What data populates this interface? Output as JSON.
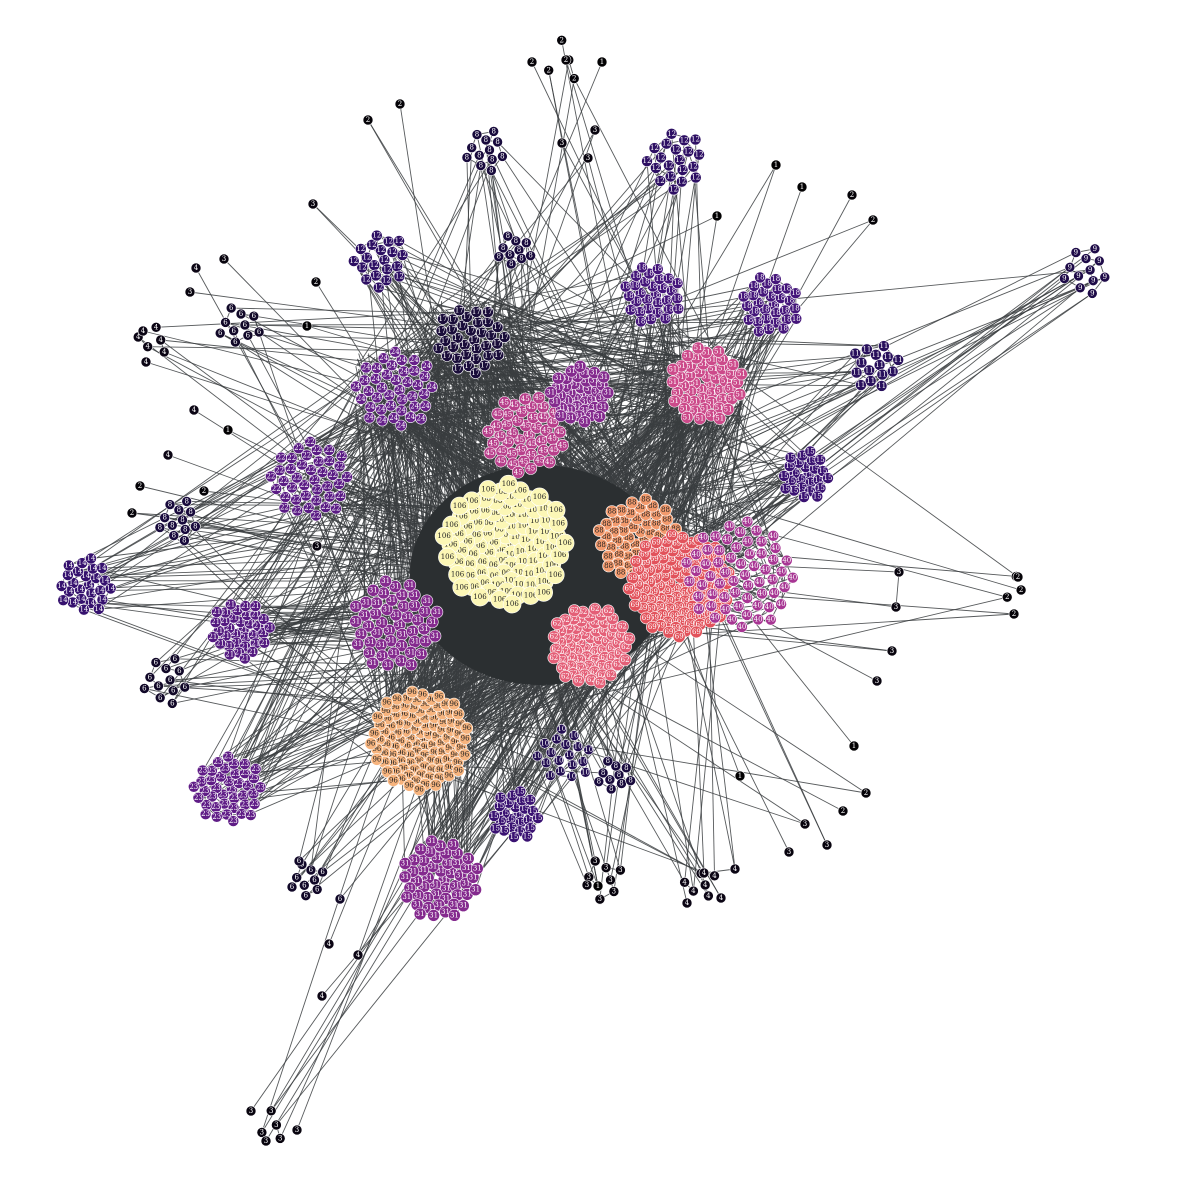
{
  "colors": {
    "background": "#ffffff",
    "edge": "#3a3d3f",
    "core_fill": "#2b2f31"
  },
  "legend_scale": {
    "label_light_threshold": 35
  },
  "clusters": [
    {
      "label": "106",
      "color": "#fcf7b6",
      "text": "#222222",
      "size": "large"
    },
    {
      "label": "96",
      "color": "#f7b47e",
      "text": "#222222",
      "size": "large"
    },
    {
      "label": "88",
      "color": "#f39a6d",
      "text": "#222222",
      "size": "medium"
    },
    {
      "label": "69",
      "color": "#e2525b",
      "text": "#ffffff",
      "size": "large"
    },
    {
      "label": "62",
      "color": "#e45f77",
      "text": "#ffffff",
      "size": "large"
    },
    {
      "label": "51",
      "color": "#cc4a8a",
      "text": "#ffffff",
      "size": "medium"
    },
    {
      "label": "45",
      "color": "#b83f8b",
      "text": "#ffffff",
      "size": "medium"
    },
    {
      "label": "40",
      "color": "#a73593",
      "text": "#ffffff",
      "size": "medium"
    },
    {
      "label": "31",
      "color": "#842a8e",
      "text": "#ffffff",
      "size": "medium"
    },
    {
      "label": "24",
      "color": "#66208a",
      "text": "#ffffff",
      "size": "medium"
    },
    {
      "label": "23",
      "color": "#5f1c86",
      "text": "#ffffff",
      "size": "small"
    },
    {
      "label": "22",
      "color": "#5a1b84",
      "text": "#ffffff",
      "size": "small"
    },
    {
      "label": "21",
      "color": "#541a80",
      "text": "#ffffff",
      "size": "small"
    },
    {
      "label": "18",
      "color": "#44157a",
      "text": "#ffffff",
      "size": "small"
    },
    {
      "label": "15",
      "color": "#3a1272",
      "text": "#ffffff",
      "size": "small"
    },
    {
      "label": "14",
      "color": "#35116e",
      "text": "#ffffff",
      "size": "small"
    },
    {
      "label": "12",
      "color": "#2d0f63",
      "text": "#ffffff",
      "size": "small"
    },
    {
      "label": "11",
      "color": "#28105c",
      "text": "#ffffff",
      "size": "small"
    },
    {
      "label": "10",
      "color": "#230e52",
      "text": "#ffffff",
      "size": "small"
    },
    {
      "label": "9",
      "color": "#1e0b48",
      "text": "#ffffff",
      "size": "tiny"
    },
    {
      "label": "8",
      "color": "#180a3c",
      "text": "#ffffff",
      "size": "tiny"
    },
    {
      "label": "6",
      "color": "#110828",
      "text": "#ffffff",
      "size": "tiny"
    },
    {
      "label": "4",
      "color": "#0b0514",
      "text": "#ffffff",
      "size": "tiny"
    },
    {
      "label": "3",
      "color": "#08040e",
      "text": "#ffffff",
      "size": "tiny"
    },
    {
      "label": "2",
      "color": "#050308",
      "text": "#ffffff",
      "size": "tiny"
    },
    {
      "label": "1",
      "color": "#020102",
      "text": "#ffffff",
      "size": "tiny"
    }
  ]
}
